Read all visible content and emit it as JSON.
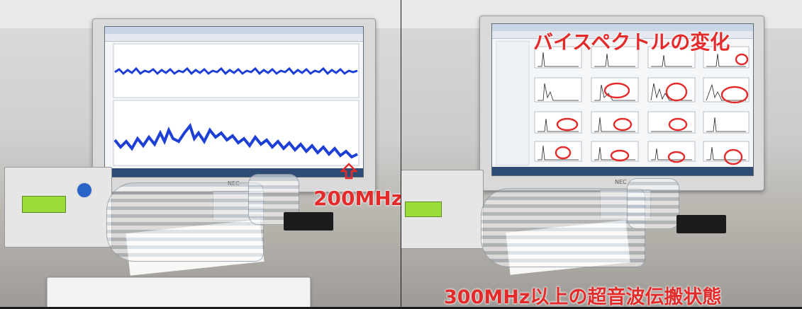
{
  "annotations": {
    "left_label": "200MHz",
    "right_title": "バイスペクトルの変化",
    "bottom_caption": "300MHz以上の超音波伝搬状態"
  },
  "colors": {
    "annotation": "#e42b2b",
    "waveform": "#1e3fd6",
    "lcd": "#9bdc3a",
    "taskbar": "#2e4c73"
  },
  "icons": {
    "arrow": "up-arrow-outline-icon",
    "highlight": "red-circle-icon"
  },
  "monitor_brand": "NEC"
}
